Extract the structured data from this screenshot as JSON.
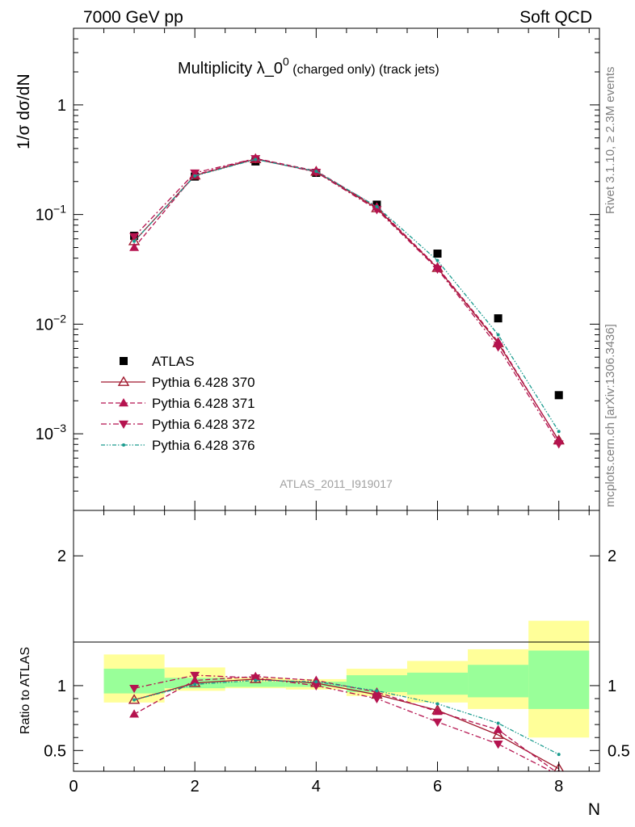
{
  "header": {
    "left": "7000 GeV pp",
    "right": "Soft QCD"
  },
  "title": {
    "main": "Multiplicity λ_0",
    "superscript": "0",
    "sub": " (charged only) (track jets)"
  },
  "side_labels": {
    "rivet": "Rivet 3.1.10, ≥ 2.3M events",
    "mcplots": "mcplots.cern.ch [arXiv:1306.3436]"
  },
  "watermark": "ATLAS_2011_I919017",
  "chart_data": [
    {
      "type": "scatter",
      "panel": "main",
      "ylabel": "1/σ dσ/dN",
      "yscale": "log",
      "xlim": [
        0,
        8.67
      ],
      "ylim": [
        0.0002,
        5
      ],
      "ytick_labels": [
        {
          "value": 1,
          "mantissa": "1",
          "exp": ""
        },
        {
          "value": 0.1,
          "mantissa": "10",
          "exp": "−1"
        },
        {
          "value": 0.01,
          "mantissa": "10",
          "exp": "−2"
        },
        {
          "value": 0.001,
          "mantissa": "10",
          "exp": "−3"
        }
      ],
      "x": [
        1,
        2,
        3,
        4,
        5,
        6,
        7,
        8
      ],
      "series": [
        {
          "name": "ATLAS",
          "style": "data",
          "color": "#000000",
          "marker": "square",
          "values": [
            0.064,
            0.222,
            0.305,
            0.24,
            0.123,
            0.044,
            0.0113,
            0.00225
          ]
        },
        {
          "name": "Pythia 6.428 370",
          "style": "solid",
          "color": "#a0182d",
          "marker": "triangle-open",
          "values": [
            0.057,
            0.227,
            0.32,
            0.246,
            0.114,
            0.0325,
            0.0067,
            0.00087
          ]
        },
        {
          "name": "Pythia 6.428 371",
          "style": "dashed",
          "color": "#b5134f",
          "marker": "triangle-up",
          "values": [
            0.05,
            0.23,
            0.325,
            0.25,
            0.117,
            0.033,
            0.0069,
            0.00086
          ]
        },
        {
          "name": "Pythia 6.428 372",
          "style": "dashdot",
          "color": "#b5134f",
          "marker": "triangle-down",
          "values": [
            0.063,
            0.24,
            0.324,
            0.243,
            0.111,
            0.0318,
            0.0062,
            0.00081
          ]
        },
        {
          "name": "Pythia 6.428 376",
          "style": "dashdotdot",
          "color": "#1a9b8e",
          "marker": "dot",
          "values": [
            0.057,
            0.225,
            0.318,
            0.248,
            0.118,
            0.038,
            0.008,
            0.00105
          ]
        }
      ]
    },
    {
      "type": "line",
      "panel": "ratio",
      "ylabel": "Ratio to ATLAS",
      "xlabel": "N",
      "xlim": [
        0,
        8.67
      ],
      "ylim": [
        0.34,
        2.35
      ],
      "xticks": [
        0,
        2,
        4,
        6,
        8
      ],
      "yticks": [
        0.5,
        1,
        2
      ],
      "bands": {
        "x_edges": [
          0.5,
          1.5,
          2.5,
          3.5,
          4.5,
          5.5,
          6.5,
          7.5,
          8.5
        ],
        "outer_low": [
          0.87,
          0.96,
          0.98,
          0.97,
          0.92,
          0.87,
          0.82,
          0.6
        ],
        "outer_high": [
          1.24,
          1.14,
          1.06,
          1.05,
          1.13,
          1.19,
          1.28,
          1.5
        ],
        "inner_low": [
          0.94,
          0.98,
          0.99,
          0.99,
          0.95,
          0.93,
          0.91,
          0.82
        ],
        "inner_high": [
          1.13,
          1.06,
          1.03,
          1.03,
          1.08,
          1.1,
          1.16,
          1.27
        ]
      },
      "x": [
        1,
        2,
        3,
        4,
        5,
        6,
        7,
        8
      ],
      "series": [
        {
          "name": "Pythia 6.428 370",
          "values": [
            0.89,
            1.02,
            1.05,
            1.02,
            0.93,
            0.81,
            0.62,
            0.36
          ]
        },
        {
          "name": "Pythia 6.428 371",
          "values": [
            0.78,
            1.04,
            1.07,
            1.04,
            0.95,
            0.8,
            0.66,
            0.32
          ]
        },
        {
          "name": "Pythia 6.428 372",
          "values": [
            0.98,
            1.08,
            1.06,
            1.0,
            0.9,
            0.72,
            0.55,
            0.31
          ]
        },
        {
          "name": "Pythia 6.428 376",
          "values": [
            0.89,
            1.01,
            1.04,
            1.03,
            0.96,
            0.86,
            0.71,
            0.47
          ]
        }
      ]
    }
  ]
}
